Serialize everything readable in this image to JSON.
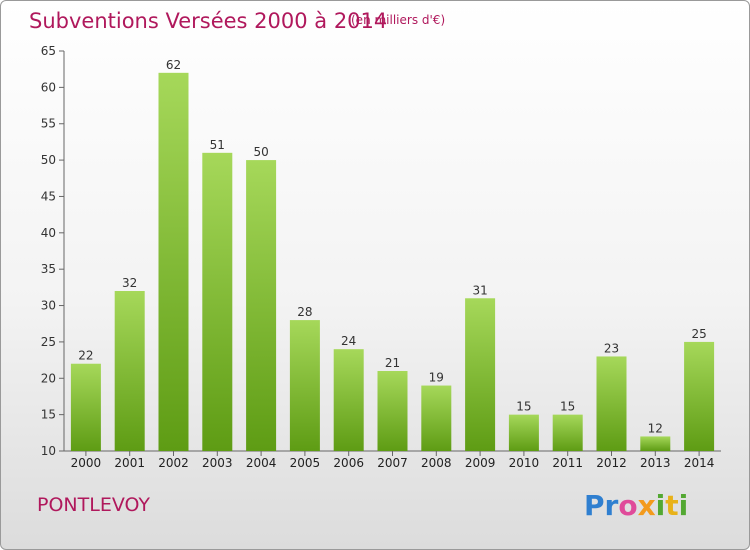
{
  "header": {
    "title": "Subventions Versées 2000 à 2014",
    "subtitle": "(en milliers d'€)"
  },
  "footer": {
    "commune": "PONTLEVOY",
    "logo_text": "Proxiti"
  },
  "colors": {
    "title": "#b0185c",
    "bar_light": "#a6d85a",
    "bar_dark": "#5e9c14",
    "logo": [
      "#2f7fd0",
      "#e04b9a",
      "#f39a1c",
      "#53a832",
      "#e8b21a"
    ]
  },
  "chart_data": {
    "type": "bar",
    "title": "Subventions Versées 2000 à 2014",
    "subtitle": "(en milliers d'€)",
    "categories": [
      "2000",
      "2001",
      "2002",
      "2003",
      "2004",
      "2005",
      "2006",
      "2007",
      "2008",
      "2009",
      "2010",
      "2011",
      "2012",
      "2013",
      "2014"
    ],
    "values": [
      22,
      32,
      62,
      51,
      50,
      28,
      24,
      21,
      19,
      31,
      15,
      15,
      23,
      12,
      25
    ],
    "ylim": [
      10,
      65
    ],
    "yticks": [
      10,
      15,
      20,
      25,
      30,
      35,
      40,
      45,
      50,
      55,
      60,
      65
    ],
    "grid": false,
    "legend": "none"
  }
}
